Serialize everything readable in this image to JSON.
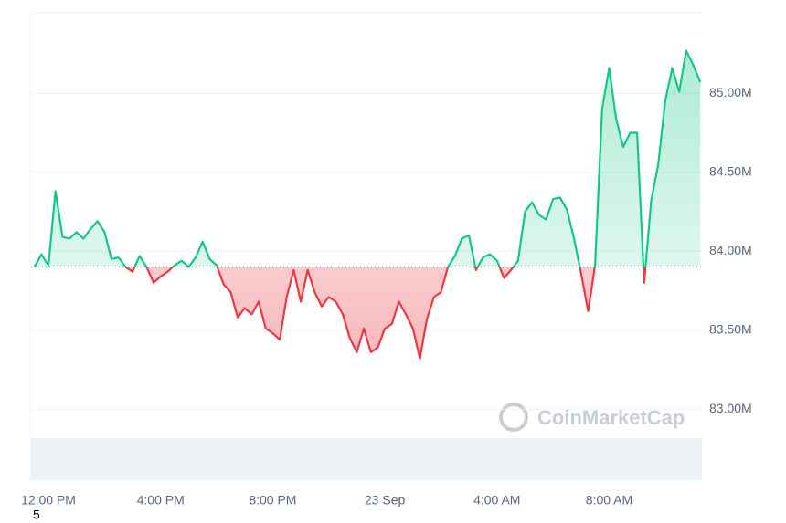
{
  "chart_data": {
    "type": "line",
    "watermark": "CoinMarketCap",
    "footnote": "5",
    "baseline": 83.9,
    "colors": {
      "up": "#16c784",
      "down": "#ea3943"
    },
    "xlim": [
      -0.62,
      23.31
    ],
    "xticks": [
      {
        "value": 0,
        "label": "12:00 PM"
      },
      {
        "value": 4,
        "label": "4:00 PM"
      },
      {
        "value": 8,
        "label": "8:00 PM"
      },
      {
        "value": 12,
        "label": "23 Sep"
      },
      {
        "value": 16,
        "label": "4:00 AM"
      },
      {
        "value": 20,
        "label": "8:00 AM"
      }
    ],
    "ylim": [
      82.55,
      85.51
    ],
    "yticks": [
      {
        "value": 83,
        "label": "83.00M"
      },
      {
        "value": 83.5,
        "label": "83.50M"
      },
      {
        "value": 84,
        "label": "84.00M"
      },
      {
        "value": 84.5,
        "label": "84.50M"
      },
      {
        "value": 85,
        "label": "85.00M"
      }
    ],
    "grid": true,
    "x": [
      -0.5,
      -0.25,
      0,
      0.25,
      0.5,
      0.75,
      1,
      1.25,
      1.5,
      1.75,
      2,
      2.25,
      2.5,
      2.75,
      3,
      3.25,
      3.5,
      3.75,
      4,
      4.25,
      4.5,
      4.75,
      5,
      5.25,
      5.5,
      5.75,
      6,
      6.25,
      6.5,
      6.75,
      7,
      7.25,
      7.5,
      7.75,
      8,
      8.25,
      8.5,
      8.75,
      9,
      9.25,
      9.5,
      9.75,
      10,
      10.25,
      10.5,
      10.75,
      11,
      11.25,
      11.5,
      11.75,
      12,
      12.25,
      12.5,
      12.75,
      13,
      13.25,
      13.5,
      13.75,
      14,
      14.25,
      14.5,
      14.75,
      15,
      15.25,
      15.5,
      15.75,
      16,
      16.25,
      16.5,
      16.75,
      17,
      17.25,
      17.5,
      17.75,
      18,
      18.25,
      18.5,
      18.75,
      19,
      19.25,
      19.5,
      19.75,
      20,
      20.25,
      20.5,
      20.75,
      21,
      21.25,
      21.5,
      21.75,
      22,
      22.25,
      22.5,
      22.75,
      23,
      23.25
    ],
    "values": [
      83.9,
      83.98,
      83.91,
      84.38,
      84.09,
      84.08,
      84.12,
      84.08,
      84.14,
      84.19,
      84.12,
      83.95,
      83.96,
      83.9,
      83.87,
      83.97,
      83.9,
      83.8,
      83.84,
      83.87,
      83.91,
      83.94,
      83.9,
      83.96,
      84.06,
      83.95,
      83.91,
      83.79,
      83.74,
      83.58,
      83.64,
      83.6,
      83.68,
      83.51,
      83.48,
      83.44,
      83.71,
      83.88,
      83.68,
      83.88,
      83.74,
      83.65,
      83.71,
      83.68,
      83.6,
      83.45,
      83.36,
      83.51,
      83.36,
      83.39,
      83.51,
      83.54,
      83.68,
      83.6,
      83.51,
      83.32,
      83.57,
      83.71,
      83.74,
      83.9,
      83.97,
      84.08,
      84.1,
      83.88,
      83.96,
      83.98,
      83.94,
      83.83,
      83.88,
      83.94,
      84.25,
      84.31,
      84.23,
      84.2,
      84.33,
      84.34,
      84.26,
      84.08,
      83.86,
      83.62,
      83.91,
      84.9,
      85.16,
      84.84,
      84.66,
      84.75,
      84.75,
      83.8,
      84.32,
      84.55,
      84.95,
      85.16,
      85.01,
      85.27,
      85.18,
      85.07
    ]
  }
}
